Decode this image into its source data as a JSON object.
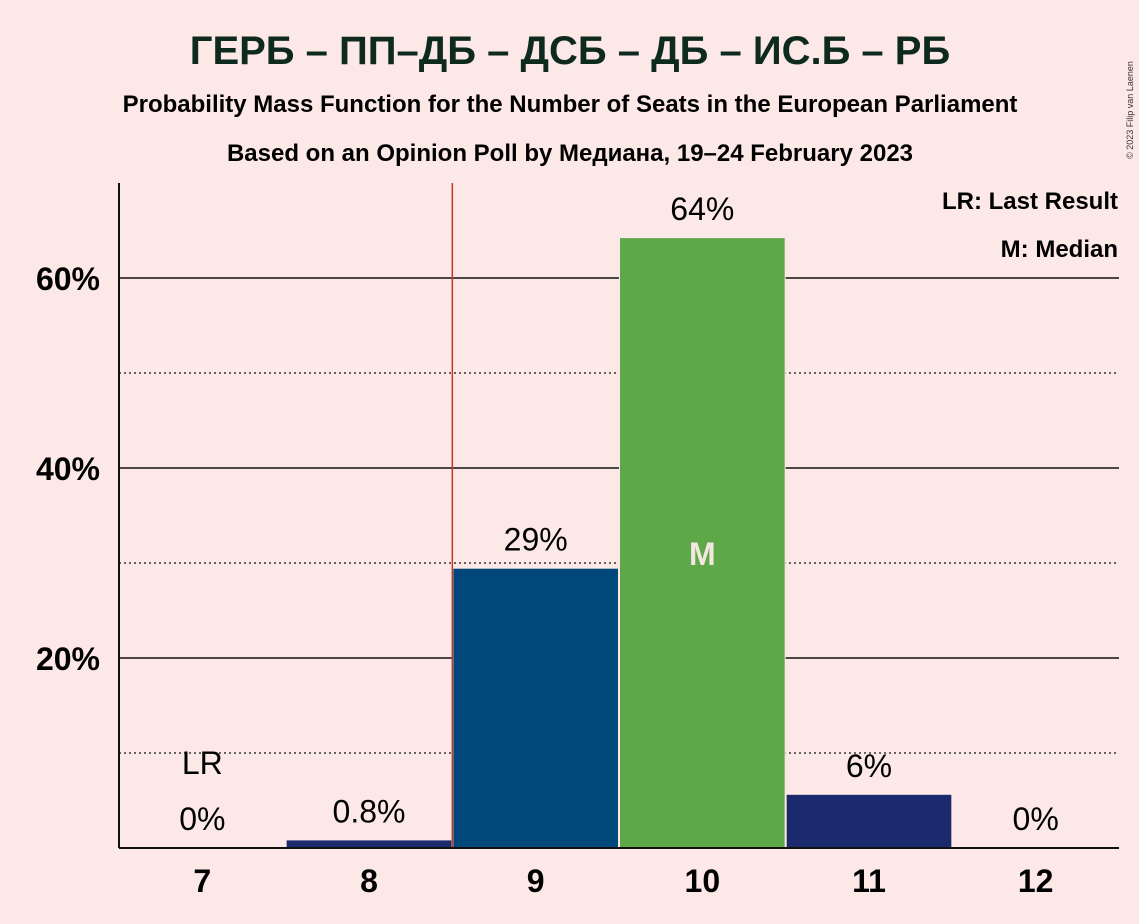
{
  "chart_data": {
    "type": "bar",
    "title": "ГЕРБ – ПП–ДБ – ДСБ – ДБ – ИС.Б – РБ",
    "subtitle": "Probability Mass Function for the Number of Seats in the European Parliament",
    "subtitle2": "Based on an Opinion Poll by Медиана, 19–24 February 2023",
    "copyright": "© 2023 Filip van Laenen",
    "categories": [
      "7",
      "8",
      "9",
      "10",
      "11",
      "12"
    ],
    "values": [
      0,
      0.8,
      29.4,
      64.2,
      5.6,
      0
    ],
    "value_labels": [
      "0%",
      "0.8%",
      "29%",
      "64%",
      "6%",
      "0%"
    ],
    "bar_colors": [
      "#1A2A6C",
      "#1A2A6C",
      "#00477A",
      "#5EA84A",
      "#1A2A6C",
      "#1A2A6C"
    ],
    "ylim": [
      0,
      70
    ],
    "y_ticks": [
      20,
      40,
      60
    ],
    "y_tick_labels": [
      "20%",
      "40%",
      "60%"
    ],
    "y_minor_ticks": [
      10,
      30,
      50
    ],
    "last_result_index": 0,
    "last_result_label": "LR",
    "median_index": 3,
    "median_label": "M",
    "threshold_line_x": 8.5,
    "threshold_line_color": "#C0392B",
    "legend": [
      "LR: Last Result",
      "M: Median"
    ],
    "legend_position": "top-right"
  }
}
